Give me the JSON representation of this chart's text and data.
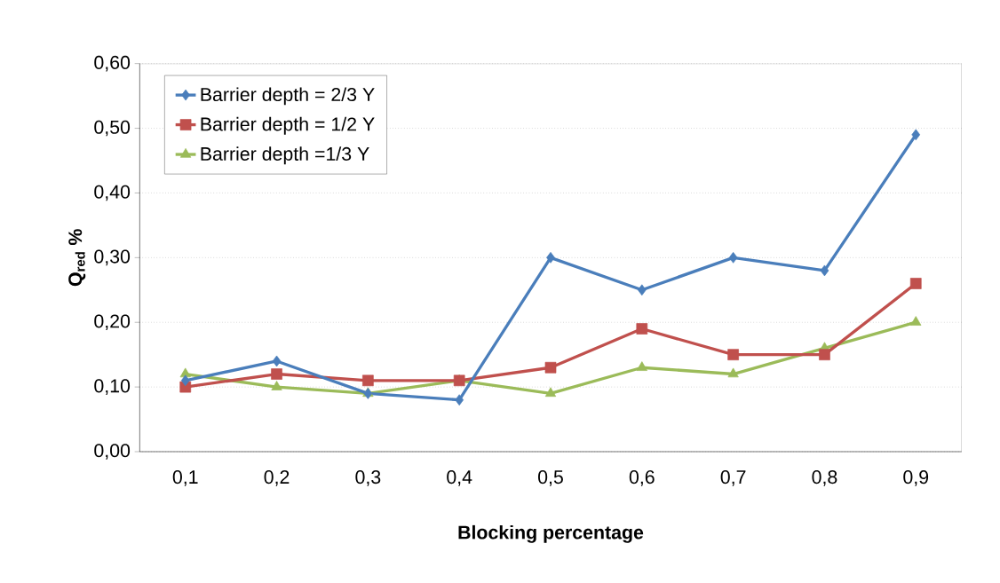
{
  "chart_data": {
    "type": "line",
    "categories": [
      "0,1",
      "0,2",
      "0,3",
      "0,4",
      "0,5",
      "0,6",
      "0,7",
      "0,8",
      "0,9"
    ],
    "series": [
      {
        "name": "Barrier depth = 2/3 Y",
        "color": "#4a7ebb",
        "marker": "diamond",
        "values": [
          0.11,
          0.14,
          0.09,
          0.08,
          0.3,
          0.25,
          0.3,
          0.28,
          0.49
        ]
      },
      {
        "name": "Barrier depth = 1/2 Y",
        "color": "#c0504d",
        "marker": "square",
        "values": [
          0.1,
          0.12,
          0.11,
          0.11,
          0.13,
          0.19,
          0.15,
          0.15,
          0.26
        ]
      },
      {
        "name": "Barrier depth =1/3 Y",
        "color": "#9bbb59",
        "marker": "triangle",
        "values": [
          0.12,
          0.1,
          0.09,
          0.11,
          0.09,
          0.13,
          0.12,
          0.16,
          0.2
        ]
      }
    ],
    "xlabel": "Blocking percentage",
    "ylabel": "**Q$_{red}$ %**",
    "ylim": [
      0,
      0.6
    ],
    "yticks": [
      {
        "value": 0,
        "label": "0,00"
      },
      {
        "value": 0.1,
        "label": "0,10"
      },
      {
        "value": 0.2,
        "label": "0,20"
      },
      {
        "value": 0.3,
        "label": "0,30"
      },
      {
        "value": 0.4,
        "label": "0,40"
      },
      {
        "value": 0.5,
        "label": "0,50"
      },
      {
        "value": 0.6,
        "label": "0,60"
      }
    ],
    "grid": "y",
    "legend": "top left",
    "line_style": "solid"
  }
}
